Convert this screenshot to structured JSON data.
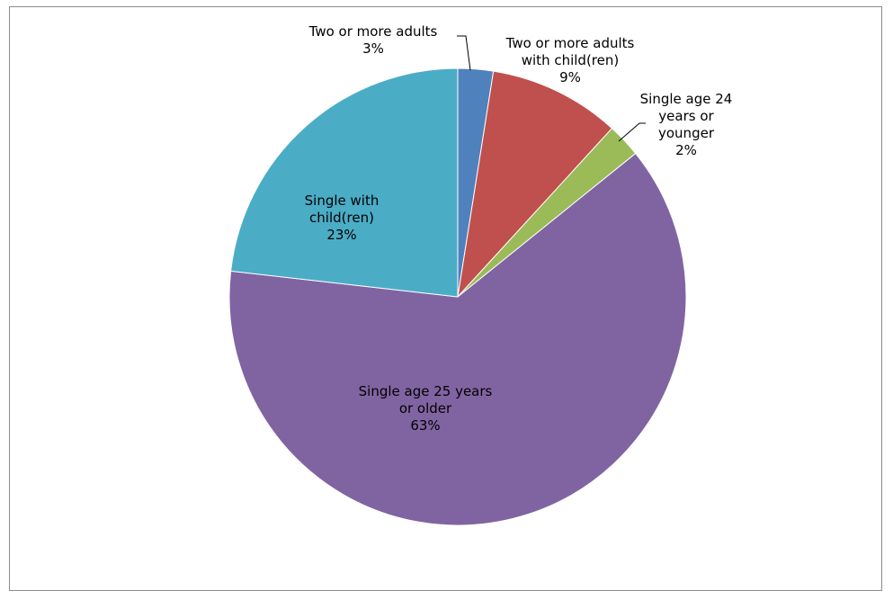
{
  "chart_data": {
    "type": "pie",
    "title": "",
    "slices": [
      {
        "label": "Two or more adults",
        "percent_label": "3%",
        "value": 2.5,
        "color": "#4f81bd"
      },
      {
        "label": "Two or more adults with child(ren)",
        "percent_label": "9%",
        "value": 9.3,
        "color": "#c0504d"
      },
      {
        "label": "Single age 24 years or younger",
        "percent_label": "2%",
        "value": 2.4,
        "color": "#9bbb59"
      },
      {
        "label": "Single age 25 years or older",
        "percent_label": "63%",
        "value": 62.6,
        "color": "#8064a2"
      },
      {
        "label": "Single with child(ren)",
        "percent_label": "23%",
        "value": 23.2,
        "color": "#4bacc6"
      }
    ],
    "legend": "none",
    "data_labels": "category and percent"
  }
}
